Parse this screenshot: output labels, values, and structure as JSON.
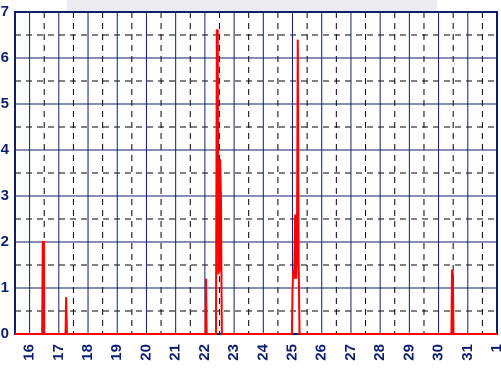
{
  "chart_data": {
    "type": "line",
    "x": [
      15.5,
      16.43,
      16.45,
      16.49,
      16.5,
      17.23,
      17.25,
      17.28,
      22.02,
      22.04,
      22.06,
      22.38,
      22.41,
      22.44,
      22.46,
      22.5,
      22.52,
      22.55,
      22.58,
      24.98,
      25.0,
      25.03,
      25.06,
      25.09,
      25.12,
      25.15,
      25.18,
      25.21,
      25.24,
      30.44,
      30.46,
      30.49,
      30.51,
      32
    ],
    "series": [
      {
        "color": "#ff0000",
        "values": [
          0,
          0,
          2.0,
          2.0,
          0,
          0,
          0.8,
          0,
          0,
          1.2,
          0,
          0,
          6.6,
          6.6,
          1.3,
          1.4,
          3.8,
          3.0,
          0,
          0,
          1.0,
          1.4,
          1.2,
          2.6,
          1.2,
          1.6,
          6.4,
          1.6,
          0,
          0,
          1.4,
          1.3,
          0,
          0
        ]
      }
    ],
    "xlim": [
      15.5,
      32
    ],
    "xticks": [
      16,
      17,
      18,
      19,
      20,
      21,
      22,
      23,
      24,
      25,
      26,
      27,
      28,
      29,
      30,
      31,
      {
        "value": 32,
        "label": "1"
      }
    ],
    "ylim": [
      0,
      7
    ],
    "yticks": [
      0,
      1,
      2,
      3,
      4,
      5,
      6,
      7
    ],
    "grid": true
  }
}
